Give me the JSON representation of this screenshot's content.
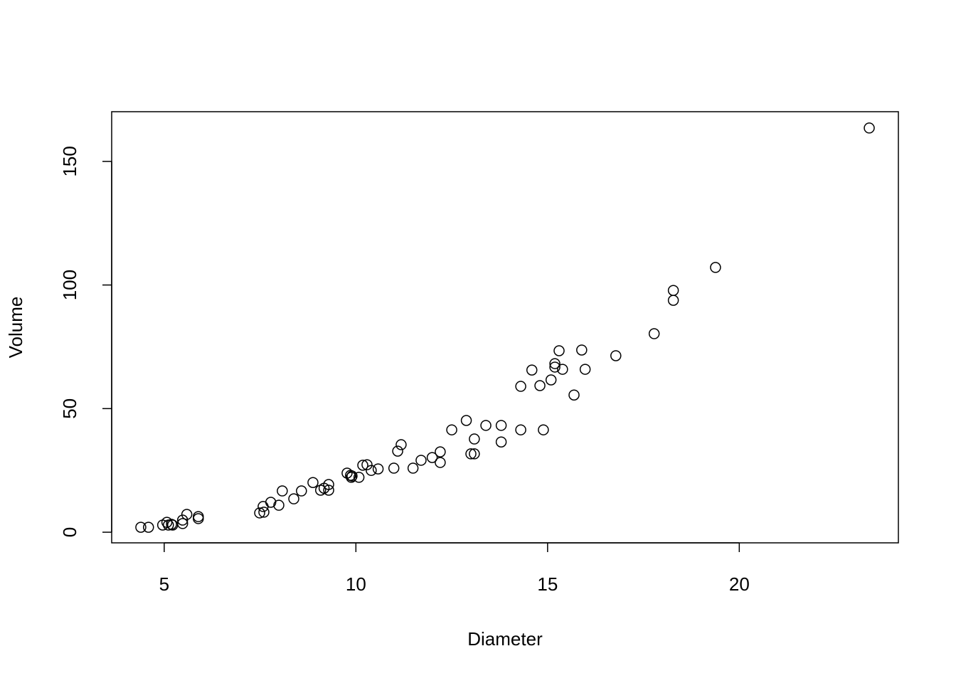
{
  "chart_data": {
    "type": "scatter",
    "xlabel": "Diameter",
    "ylabel": "Volume",
    "x": [
      4.39,
      4.59,
      4.96,
      5.07,
      5.11,
      5.19,
      5.22,
      5.48,
      5.48,
      5.59,
      5.89,
      5.89,
      7.49,
      7.6,
      7.58,
      7.78,
      7.99,
      8.08,
      8.38,
      8.58,
      8.88,
      9.08,
      9.17,
      9.29,
      9.29,
      9.77,
      9.86,
      9.88,
      9.9,
      10.08,
      10.18,
      10.29,
      10.4,
      10.58,
      10.99,
      11.09,
      11.18,
      11.49,
      11.7,
      11.99,
      12.2,
      12.2,
      12.5,
      12.88,
      13.0,
      13.09,
      13.09,
      13.39,
      13.79,
      13.79,
      14.3,
      14.3,
      14.59,
      14.8,
      14.89,
      15.09,
      15.19,
      15.19,
      15.3,
      15.39,
      15.69,
      15.89,
      15.98,
      16.78,
      17.78,
      18.28,
      18.28,
      19.38,
      23.39
    ],
    "values": [
      2.0,
      2.0,
      2.9,
      4.0,
      2.9,
      3.2,
      2.9,
      3.5,
      4.9,
      7.2,
      6.3,
      5.5,
      7.8,
      8.1,
      10.4,
      12.1,
      10.9,
      16.7,
      13.5,
      16.7,
      20.1,
      17.0,
      17.8,
      19.3,
      17.0,
      23.9,
      23.0,
      22.2,
      22.7,
      22.2,
      27.1,
      27.3,
      25.0,
      25.6,
      25.9,
      32.8,
      35.4,
      25.9,
      29.1,
      30.2,
      28.2,
      32.5,
      41.4,
      45.2,
      31.7,
      31.7,
      37.7,
      43.2,
      43.2,
      36.5,
      41.4,
      59.0,
      65.6,
      59.3,
      41.4,
      61.6,
      68.2,
      66.8,
      73.4,
      65.9,
      55.5,
      73.7,
      65.9,
      71.4,
      80.3,
      97.8,
      93.8,
      107.1,
      163.5
    ],
    "color": "#000000",
    "xlim": [
      3.63,
      24.15
    ],
    "ylim": [
      -4.3,
      170.1
    ],
    "xticks": [
      5,
      10,
      15,
      20
    ],
    "yticks": [
      0,
      50,
      100,
      150
    ]
  }
}
